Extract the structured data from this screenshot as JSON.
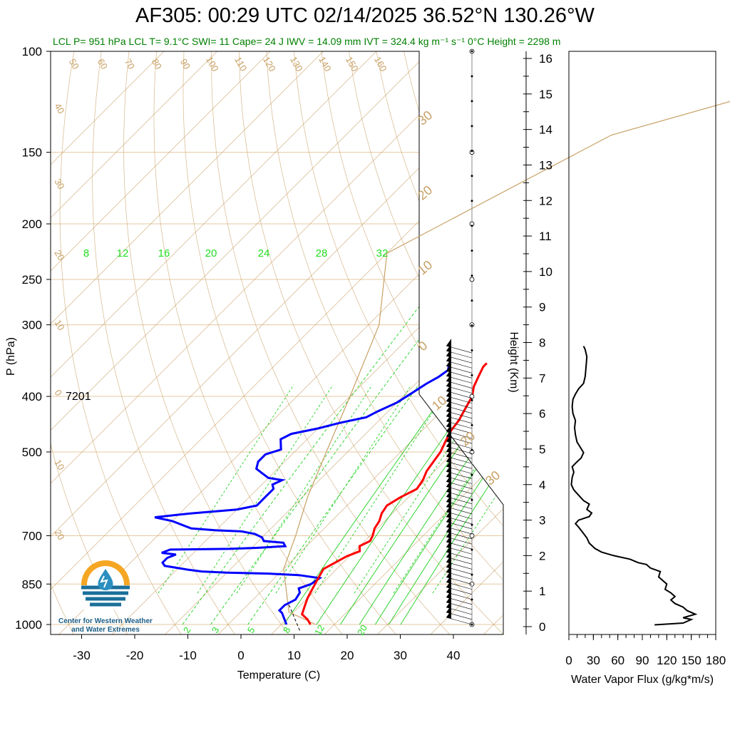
{
  "title_main": "AF305: 00:29 UTC 02/14/2025  36.52°N 130.26°W",
  "info": "LCL P= 951 hPa  LCL T= 9.1°C  SWI= 11  Cape= 24 J  IWV = 14.09 mm  IVT = 324.4 kg m⁻¹ s⁻¹  0°C Height = 2298 m",
  "label_7201": "7201",
  "logo": {
    "line1": "Center for Western Weather",
    "line2": "and Water Extremes",
    "icon": "water-drop-wind-icon"
  },
  "colors": {
    "temperature": "#ff0000",
    "dewpoint": "#0000ff",
    "dry_adiabat": "#c8a064",
    "mixing_ratio": "#00cc00",
    "isobar": "#e6c8a0",
    "flux": "#000000"
  },
  "chart_data": [
    {
      "type": "line",
      "title": "AF305: 00:29 UTC 02/14/2025  36.52°N 130.26°W",
      "xlabel": "Temperature (C)",
      "ylabel": "P (hPa)",
      "xlim": [
        -34,
        50
      ],
      "ylim_pressure": [
        1000,
        100
      ],
      "pressure_scale": "log",
      "x_ticks": [
        "-30",
        "-20",
        "-10",
        "0",
        "10",
        "20",
        "30",
        "40"
      ],
      "y_ticks": [
        "100",
        "150",
        "200",
        "250",
        "300",
        "400",
        "500",
        "700",
        "850",
        "1000"
      ],
      "mixing_ratio_labels": [
        "8",
        "12",
        "16",
        "20",
        "24",
        "28",
        "32",
        "2",
        "3",
        "5",
        "8",
        "12",
        "20"
      ],
      "dry_adiabat_labels": [
        "50",
        "60",
        "70",
        "80",
        "90",
        "100",
        "110",
        "120",
        "130",
        "140",
        "150",
        "160",
        "40",
        "30",
        "20",
        "10",
        "0",
        "10",
        "20",
        "30",
        "20",
        "10",
        "0",
        "10",
        "20",
        "30"
      ],
      "series": [
        {
          "name": "Temperature",
          "points": [
            [
              15.5,
              1000
            ],
            [
              14,
              980
            ],
            [
              12,
              960
            ],
            [
              11,
              930
            ],
            [
              10,
              900
            ],
            [
              9.5,
              880
            ],
            [
              9,
              860
            ],
            [
              8.5,
              840
            ],
            [
              8,
              820
            ],
            [
              7.5,
              800
            ],
            [
              8.5,
              780
            ],
            [
              9.5,
              760
            ],
            [
              11,
              745
            ],
            [
              10,
              730
            ],
            [
              11,
              715
            ],
            [
              10.5,
              700
            ],
            [
              9.5,
              680
            ],
            [
              9,
              660
            ],
            [
              8,
              640
            ],
            [
              7.5,
              620
            ],
            [
              8.5,
              600
            ],
            [
              10,
              580
            ],
            [
              9.5,
              560
            ],
            [
              8.5,
              540
            ],
            [
              8,
              520
            ],
            [
              7.5,
              500
            ],
            [
              6.5,
              480
            ],
            [
              5.5,
              460
            ],
            [
              5,
              440
            ],
            [
              4,
              420
            ],
            [
              3,
              400
            ],
            [
              1.5,
              385
            ],
            [
              0.5,
              370
            ],
            [
              -0.5,
              355
            ],
            [
              -0.5,
              350
            ]
          ]
        },
        {
          "name": "Dewpoint",
          "points": [
            [
              11,
              1000
            ],
            [
              10,
              985
            ],
            [
              9,
              970
            ],
            [
              8,
              955
            ],
            [
              7,
              945
            ],
            [
              7,
              925
            ],
            [
              8,
              905
            ],
            [
              7.5,
              880
            ],
            [
              6.5,
              865
            ],
            [
              8,
              850
            ],
            [
              8.5,
              830
            ],
            [
              4,
              820
            ],
            [
              -2,
              815
            ],
            [
              -10,
              812
            ],
            [
              -15,
              808
            ],
            [
              -18,
              802
            ],
            [
              -23,
              790
            ],
            [
              -24,
              780
            ],
            [
              -24,
              765
            ],
            [
              -23,
              755
            ],
            [
              -26,
              750
            ],
            [
              -25,
              740
            ],
            [
              -14,
              738
            ],
            [
              -9,
              735
            ],
            [
              -4,
              730
            ],
            [
              -5,
              720
            ],
            [
              -9,
              715
            ],
            [
              -10,
              705
            ],
            [
              -12,
              695
            ],
            [
              -15,
              688
            ],
            [
              -20,
              685
            ],
            [
              -25,
              680
            ],
            [
              -30,
              660
            ],
            [
              -34,
              650
            ],
            [
              -28,
              640
            ],
            [
              -20,
              630
            ],
            [
              -17,
              620
            ],
            [
              -17,
              600
            ],
            [
              -17,
              580
            ],
            [
              -18,
              570
            ],
            [
              -17,
              560
            ],
            [
              -20,
              555
            ],
            [
              -22,
              545
            ],
            [
              -24,
              535
            ],
            [
              -25,
              520
            ],
            [
              -25,
              505
            ],
            [
              -23,
              495
            ],
            [
              -24,
              485
            ],
            [
              -25,
              475
            ],
            [
              -24,
              465
            ],
            [
              -20,
              455
            ],
            [
              -17,
              445
            ],
            [
              -13,
              435
            ],
            [
              -12,
              425
            ],
            [
              -10,
              410
            ],
            [
              -9,
              395
            ],
            [
              -8,
              380
            ],
            [
              -7,
              370
            ],
            [
              -6.5,
              360
            ],
            [
              -7,
              355
            ],
            [
              -7.5,
              350
            ]
          ]
        },
        {
          "name": "Parcel",
          "points": [
            [
              16.5,
              1000
            ],
            [
              9.1,
              951
            ],
            [
              0,
              800
            ],
            [
              -4,
              700
            ],
            [
              -9,
              600
            ],
            [
              -14,
              500
            ],
            [
              -20,
              400
            ],
            [
              -28,
              300
            ],
            [
              -40,
              225
            ],
            [
              -20,
              140
            ],
            [
              20,
              100
            ]
          ]
        }
      ]
    },
    {
      "type": "line",
      "xlabel": "Water Vapor Flux (g/kg*m/s)",
      "ylabel": "Height (Km)",
      "xlim": [
        0,
        180
      ],
      "ylim": [
        0,
        16
      ],
      "x_ticks": [
        "0",
        "30",
        "60",
        "90",
        "120",
        "150",
        "180"
      ],
      "y_ticks": [
        "0",
        "1",
        "2",
        "3",
        "4",
        "5",
        "6",
        "7",
        "8",
        "9",
        "10",
        "11",
        "12",
        "13",
        "14",
        "15",
        "16"
      ],
      "series": [
        {
          "name": "Water Vapor Flux",
          "points": [
            [
              105,
              0.05
            ],
            [
              140,
              0.1
            ],
            [
              150,
              0.2
            ],
            [
              140,
              0.25
            ],
            [
              155,
              0.35
            ],
            [
              145,
              0.45
            ],
            [
              140,
              0.55
            ],
            [
              130,
              0.65
            ],
            [
              125,
              0.75
            ],
            [
              130,
              0.85
            ],
            [
              125,
              0.95
            ],
            [
              118,
              1.05
            ],
            [
              120,
              1.2
            ],
            [
              110,
              1.4
            ],
            [
              112,
              1.55
            ],
            [
              100,
              1.65
            ],
            [
              95,
              1.75
            ],
            [
              85,
              1.8
            ],
            [
              75,
              1.9
            ],
            [
              55,
              2.0
            ],
            [
              40,
              2.1
            ],
            [
              32,
              2.2
            ],
            [
              25,
              2.35
            ],
            [
              22,
              2.5
            ],
            [
              17,
              2.65
            ],
            [
              12,
              2.8
            ],
            [
              8,
              2.9
            ],
            [
              12,
              3.0
            ],
            [
              25,
              3.1
            ],
            [
              28,
              3.2
            ],
            [
              22,
              3.3
            ],
            [
              25,
              3.45
            ],
            [
              18,
              3.55
            ],
            [
              12,
              3.7
            ],
            [
              6,
              3.85
            ],
            [
              3,
              4.0
            ],
            [
              4,
              4.2
            ],
            [
              6,
              4.35
            ],
            [
              4,
              4.5
            ],
            [
              8,
              4.6
            ],
            [
              15,
              4.75
            ],
            [
              18,
              4.9
            ],
            [
              14,
              5.05
            ],
            [
              10,
              5.2
            ],
            [
              8,
              5.4
            ],
            [
              7,
              5.6
            ],
            [
              8,
              5.8
            ],
            [
              5,
              6.0
            ],
            [
              4,
              6.2
            ],
            [
              5,
              6.4
            ],
            [
              8,
              6.55
            ],
            [
              12,
              6.7
            ],
            [
              18,
              6.85
            ],
            [
              20,
              7.05
            ],
            [
              21,
              7.3
            ],
            [
              22,
              7.6
            ],
            [
              20,
              7.8
            ],
            [
              18,
              7.9
            ]
          ]
        }
      ]
    },
    {
      "type": "scatter",
      "name": "Wind barbs",
      "units": "kt",
      "pressure_levels": [
        1000,
        950,
        900,
        850,
        800,
        750,
        700,
        650,
        600,
        550,
        500,
        470,
        440,
        400,
        370,
        350
      ],
      "speed_kt": [
        30,
        30,
        30,
        30,
        30,
        30,
        30,
        30,
        35,
        35,
        35,
        35,
        30,
        30,
        30,
        30
      ],
      "direction_deg": [
        250,
        250,
        255,
        255,
        255,
        260,
        260,
        260,
        260,
        260,
        260,
        260,
        260,
        260,
        260,
        260
      ]
    }
  ]
}
